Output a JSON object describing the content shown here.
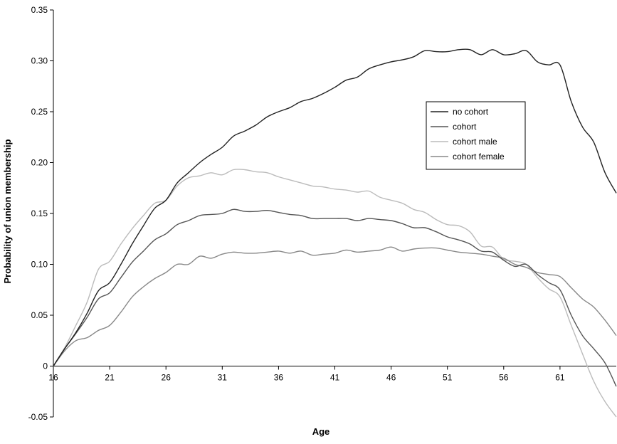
{
  "chart_data": {
    "type": "line",
    "title": "",
    "xlabel": "Age",
    "ylabel": "Probability of union membership",
    "xlim": [
      16,
      66
    ],
    "ylim": [
      -0.05,
      0.35
    ],
    "x_ticks": [
      16,
      21,
      26,
      31,
      36,
      41,
      46,
      51,
      56,
      61
    ],
    "x_tick_labels": [
      "16",
      "21",
      "26",
      "31",
      "36",
      "41",
      "46",
      "51",
      "56",
      "61"
    ],
    "y_ticks": [
      -0.05,
      0,
      0.05,
      0.1,
      0.15,
      0.2,
      0.25,
      0.3,
      0.35
    ],
    "y_tick_labels": [
      "-0.05",
      "0",
      "0.05",
      "0.10",
      "0.15",
      "0.20",
      "0.25",
      "0.30",
      "0.35"
    ],
    "grid": false,
    "legend_position": "right",
    "x": [
      16,
      17,
      18,
      19,
      20,
      21,
      22,
      23,
      24,
      25,
      26,
      27,
      28,
      29,
      30,
      31,
      32,
      33,
      34,
      35,
      36,
      37,
      38,
      39,
      40,
      41,
      42,
      43,
      44,
      45,
      46,
      47,
      48,
      49,
      50,
      51,
      52,
      53,
      54,
      55,
      56,
      57,
      58,
      59,
      60,
      61,
      62,
      63,
      64,
      65,
      66
    ],
    "series": [
      {
        "name": "no cohort",
        "color": "#222222",
        "values": [
          0.0,
          0.017,
          0.033,
          0.052,
          0.074,
          0.082,
          0.1,
          0.12,
          0.138,
          0.155,
          0.163,
          0.18,
          0.19,
          0.2,
          0.208,
          0.215,
          0.226,
          0.231,
          0.237,
          0.245,
          0.25,
          0.254,
          0.26,
          0.263,
          0.268,
          0.274,
          0.281,
          0.284,
          0.292,
          0.296,
          0.299,
          0.301,
          0.304,
          0.31,
          0.309,
          0.309,
          0.311,
          0.311,
          0.306,
          0.311,
          0.306,
          0.307,
          0.31,
          0.299,
          0.296,
          0.296,
          0.26,
          0.235,
          0.22,
          0.19,
          0.17
        ]
      },
      {
        "name": "cohort",
        "color": "#555555",
        "values": [
          0.0,
          0.017,
          0.032,
          0.048,
          0.066,
          0.072,
          0.087,
          0.102,
          0.113,
          0.124,
          0.13,
          0.139,
          0.143,
          0.148,
          0.149,
          0.15,
          0.154,
          0.152,
          0.152,
          0.153,
          0.151,
          0.149,
          0.148,
          0.145,
          0.145,
          0.145,
          0.145,
          0.143,
          0.145,
          0.144,
          0.143,
          0.14,
          0.136,
          0.136,
          0.132,
          0.127,
          0.124,
          0.12,
          0.113,
          0.112,
          0.104,
          0.098,
          0.1,
          0.09,
          0.082,
          0.075,
          0.05,
          0.03,
          0.017,
          0.003,
          -0.02
        ]
      },
      {
        "name": "cohort male",
        "color": "#bbbbbb",
        "values": [
          0.0,
          0.018,
          0.04,
          0.063,
          0.095,
          0.103,
          0.12,
          0.135,
          0.148,
          0.16,
          0.163,
          0.177,
          0.185,
          0.187,
          0.19,
          0.188,
          0.193,
          0.193,
          0.191,
          0.19,
          0.186,
          0.183,
          0.18,
          0.177,
          0.176,
          0.174,
          0.173,
          0.171,
          0.172,
          0.166,
          0.163,
          0.16,
          0.154,
          0.151,
          0.144,
          0.139,
          0.138,
          0.132,
          0.118,
          0.117,
          0.105,
          0.103,
          0.1,
          0.087,
          0.076,
          0.068,
          0.04,
          0.012,
          -0.015,
          -0.035,
          -0.05
        ]
      },
      {
        "name": "cohort female",
        "color": "#888888",
        "values": [
          0.0,
          0.015,
          0.025,
          0.028,
          0.035,
          0.04,
          0.053,
          0.068,
          0.078,
          0.086,
          0.092,
          0.1,
          0.1,
          0.108,
          0.106,
          0.11,
          0.112,
          0.111,
          0.111,
          0.112,
          0.113,
          0.111,
          0.113,
          0.109,
          0.11,
          0.111,
          0.114,
          0.112,
          0.113,
          0.114,
          0.117,
          0.113,
          0.115,
          0.116,
          0.116,
          0.114,
          0.112,
          0.111,
          0.11,
          0.108,
          0.106,
          0.1,
          0.097,
          0.092,
          0.09,
          0.088,
          0.077,
          0.066,
          0.058,
          0.045,
          0.03
        ]
      }
    ]
  }
}
